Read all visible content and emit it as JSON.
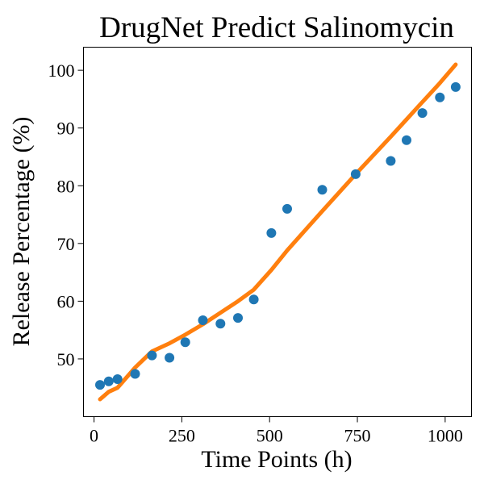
{
  "chart_data": {
    "type": "scatter",
    "title": "DrugNet Predict Salinomycin",
    "xlabel": "Time Points (h)",
    "ylabel": "Release Percentage (%)",
    "xlim": [
      -30,
      1075
    ],
    "ylim": [
      40,
      104
    ],
    "xticks": [
      0,
      250,
      500,
      750,
      1000
    ],
    "yticks": [
      50,
      60,
      70,
      80,
      90,
      100
    ],
    "grid": false,
    "legend": "none",
    "series": [
      {
        "kind": "scatter",
        "color": "#1f77b4",
        "x": [
          17,
          42,
          67,
          117,
          165,
          215,
          260,
          310,
          360,
          410,
          455,
          505,
          550,
          650,
          745,
          845,
          890,
          935,
          985,
          1030
        ],
        "y": [
          45.5,
          46.1,
          46.5,
          47.4,
          50.6,
          50.2,
          52.9,
          56.7,
          56.1,
          57.1,
          60.3,
          71.8,
          76.0,
          79.3,
          82.0,
          84.3,
          87.9,
          92.6,
          95.3,
          97.1
        ]
      },
      {
        "kind": "line",
        "color": "#ff7f0e",
        "x": [
          17,
          42,
          67,
          117,
          165,
          215,
          260,
          310,
          360,
          410,
          455,
          505,
          550,
          650,
          745,
          845,
          890,
          935,
          985,
          1030
        ],
        "y": [
          43.0,
          44.3,
          45.0,
          48.5,
          51.3,
          52.7,
          54.2,
          56.0,
          58.0,
          60.0,
          62.0,
          65.4,
          68.8,
          75.6,
          82.0,
          88.5,
          91.5,
          94.5,
          97.8,
          101.0
        ]
      }
    ]
  }
}
